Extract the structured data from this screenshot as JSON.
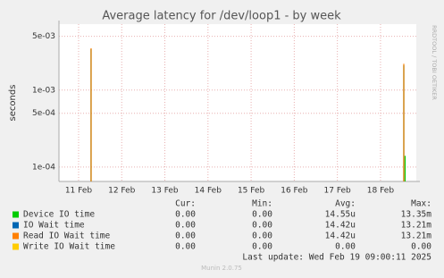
{
  "chart_data": {
    "type": "line",
    "title": "Average latency for /dev/loop1 - by week",
    "y_label": "seconds",
    "side_label": "RRDTOOL / TOBI OETIKER",
    "log_y": true,
    "grid": true,
    "x": [
      11.29,
      18.54,
      18.57
    ],
    "xlim": [
      10.545,
      18.83
    ],
    "xticks": [
      {
        "value": 11,
        "label": "11 Feb"
      },
      {
        "value": 12,
        "label": "12 Feb"
      },
      {
        "value": 13,
        "label": "13 Feb"
      },
      {
        "value": 14,
        "label": "14 Feb"
      },
      {
        "value": 15,
        "label": "15 Feb"
      },
      {
        "value": 16,
        "label": "16 Feb"
      },
      {
        "value": 17,
        "label": "17 Feb"
      },
      {
        "value": 18,
        "label": "18 Feb"
      }
    ],
    "ylim": [
      6.5e-05,
      0.0072
    ],
    "yticks": [
      {
        "value": 0.005,
        "label": "5e-03"
      },
      {
        "value": 0.001,
        "label": "1e-03"
      },
      {
        "value": 0.0005,
        "label": "5e-04"
      },
      {
        "value": 0.0001,
        "label": "1e-04"
      }
    ],
    "series": [
      {
        "name": "Device IO time",
        "color": "#00cc00",
        "values": [
          0.0034,
          0.0021,
          0.00014
        ]
      },
      {
        "name": "IO Wait time",
        "color": "#0066b3",
        "values": [
          0.0034,
          0.0021,
          null
        ]
      },
      {
        "name": "Read IO Wait time",
        "color": "#ff8000",
        "values": [
          0.0035,
          0.0022,
          null
        ]
      },
      {
        "name": "Write IO Wait time",
        "color": "#ffcc00",
        "values": [
          null,
          null,
          null
        ]
      }
    ],
    "stats": {
      "headers": [
        "Cur:",
        "Min:",
        "Avg:",
        "Max:"
      ],
      "rows": [
        [
          "0.00",
          "0.00",
          "14.55u",
          "13.35m"
        ],
        [
          "0.00",
          "0.00",
          "14.42u",
          "13.21m"
        ],
        [
          "0.00",
          "0.00",
          "14.42u",
          "13.21m"
        ],
        [
          "0.00",
          "0.00",
          "0.00",
          "0.00"
        ]
      ]
    },
    "last_update": "Last update: Wed Feb 19 09:00:11 2025",
    "footer": "Munin 2.0.75"
  }
}
